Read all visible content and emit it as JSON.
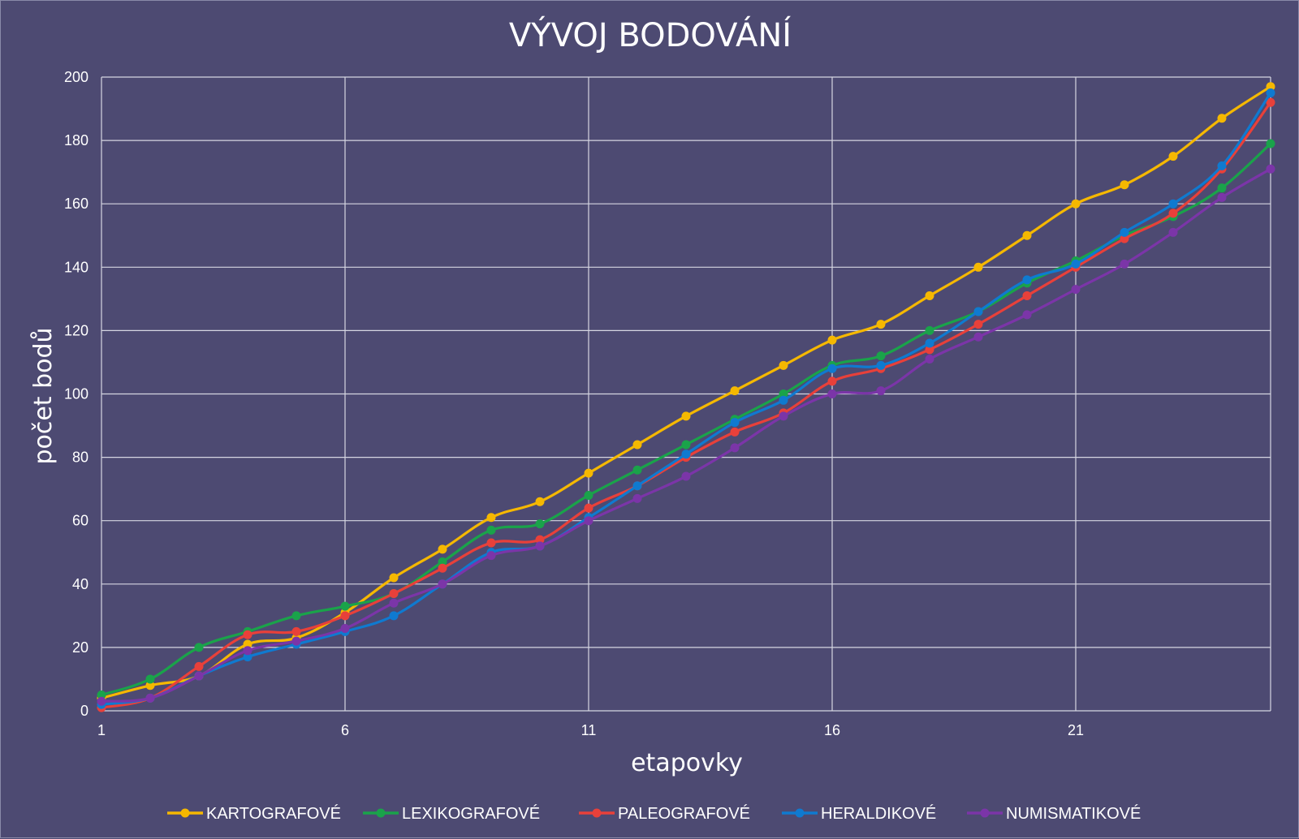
{
  "chart_data": {
    "type": "line",
    "title": "VÝVOJ BODOVÁNÍ",
    "xlabel": "etapovky",
    "ylabel": "počet bodů",
    "x": [
      1,
      2,
      3,
      4,
      5,
      6,
      7,
      8,
      9,
      10,
      11,
      12,
      13,
      14,
      15,
      16,
      17,
      18,
      19,
      20,
      21,
      22,
      23,
      24,
      25
    ],
    "x_ticks": [
      1,
      6,
      11,
      16,
      21
    ],
    "xlim": [
      1,
      25
    ],
    "ylim": [
      0,
      200
    ],
    "y_ticks": [
      0,
      20,
      40,
      60,
      80,
      100,
      120,
      140,
      160,
      180,
      200
    ],
    "grid": true,
    "legend_position": "bottom",
    "series": [
      {
        "name": "KARTOGRAFOVÉ",
        "color": "#f5b800",
        "values": [
          4,
          8,
          11,
          21,
          23,
          31,
          42,
          51,
          61,
          66,
          75,
          84,
          93,
          101,
          109,
          117,
          122,
          131,
          140,
          150,
          160,
          166,
          175,
          187,
          197
        ]
      },
      {
        "name": "LEXIKOGRAFOVÉ",
        "color": "#1aa34a",
        "values": [
          5,
          10,
          20,
          25,
          30,
          33,
          37,
          47,
          57,
          59,
          68,
          76,
          84,
          92,
          100,
          109,
          112,
          120,
          126,
          135,
          142,
          150,
          156,
          165,
          179
        ]
      },
      {
        "name": "PALEOGRAFOVÉ",
        "color": "#e8403a",
        "values": [
          1,
          4,
          14,
          24,
          25,
          30,
          37,
          45,
          53,
          54,
          64,
          71,
          80,
          88,
          94,
          104,
          108,
          114,
          122,
          131,
          140,
          149,
          157,
          171,
          192
        ]
      },
      {
        "name": "HERALDIKOVÉ",
        "color": "#0f7ad0",
        "values": [
          2,
          4,
          11,
          17,
          21,
          25,
          30,
          40,
          50,
          52,
          61,
          71,
          81,
          91,
          98,
          108,
          109,
          116,
          126,
          136,
          141,
          151,
          160,
          172,
          195
        ]
      },
      {
        "name": "NUMISMATIKOVÉ",
        "color": "#7b35a8",
        "values": [
          3,
          4,
          11,
          19,
          22,
          26,
          34,
          40,
          49,
          52,
          60,
          67,
          74,
          83,
          93,
          100,
          101,
          111,
          118,
          125,
          133,
          141,
          151,
          162,
          171
        ]
      }
    ]
  }
}
